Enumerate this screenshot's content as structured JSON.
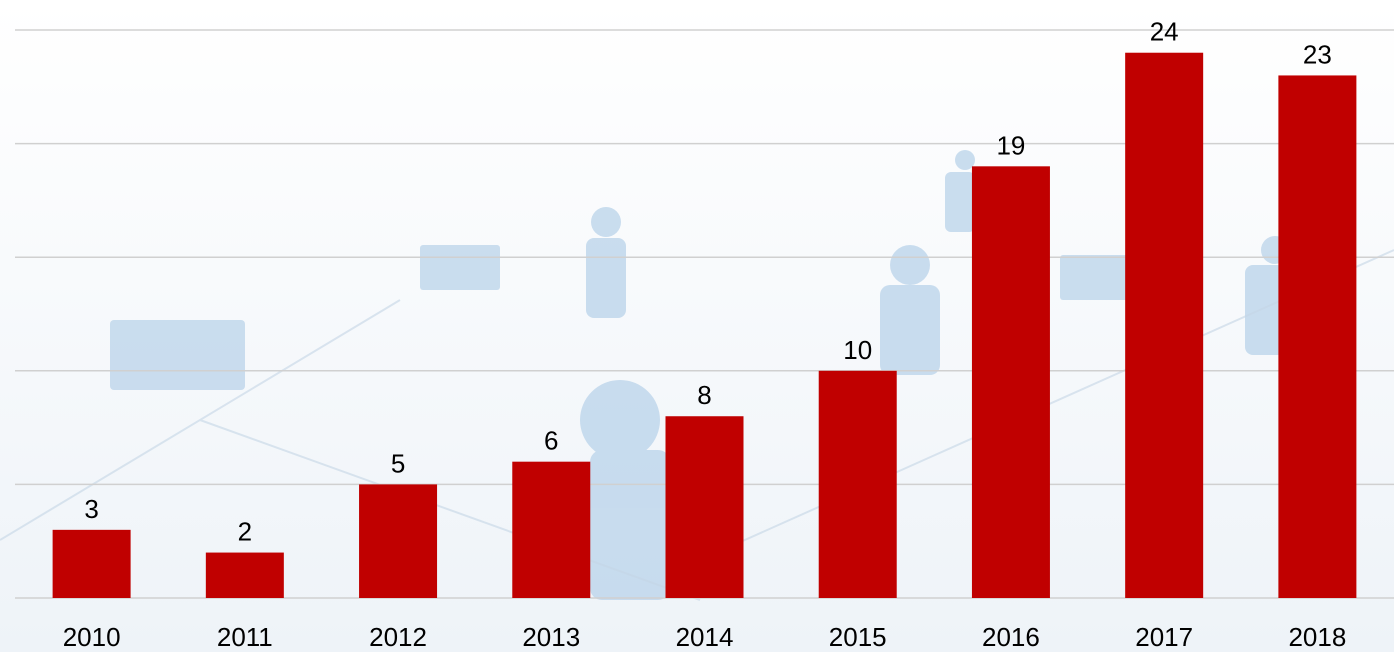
{
  "chart_data": {
    "type": "bar",
    "categories": [
      "2010",
      "2011",
      "2012",
      "2013",
      "2014",
      "2015",
      "2016",
      "2017",
      "2018"
    ],
    "values": [
      3,
      2,
      5,
      6,
      8,
      10,
      19,
      24,
      23
    ],
    "color": "#c00000",
    "ylim": [
      0,
      25
    ],
    "yticks": [
      0,
      5,
      10,
      15,
      20,
      25
    ],
    "grid": true
  }
}
